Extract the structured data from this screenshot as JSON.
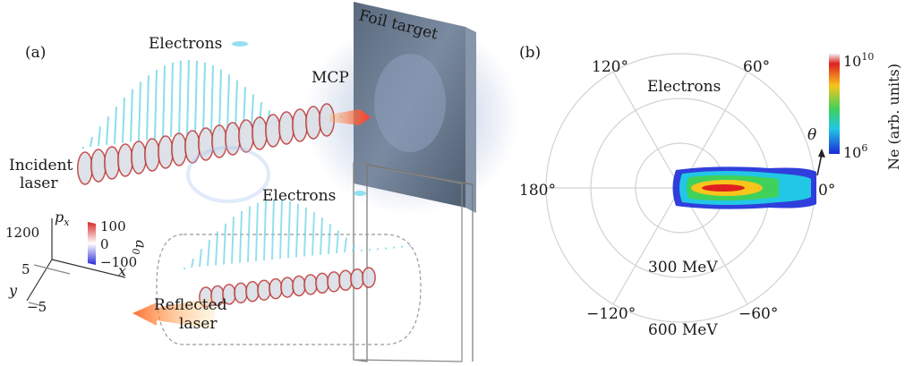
{
  "panel_a": {
    "label": "(a)",
    "foil_target": "Foil target",
    "mcp": "MCP",
    "electrons_top": "Electrons",
    "electrons_bottom": "Electrons",
    "incident_laser_1": "Incident",
    "incident_laser_2": "laser",
    "reflected_laser_1": "Reflected",
    "reflected_laser_2": "laser",
    "axes": {
      "px": "p",
      "px_sub": "x",
      "x": "x",
      "y": "y",
      "px_tick": "1200",
      "y_tick_pos": "5",
      "y_tick_neg": "−5"
    },
    "a0_colorbar": {
      "symbol": "a",
      "symbol_sub": "0",
      "max": "100",
      "mid": "0",
      "min": "−100",
      "colors": [
        "#d62a2a",
        "#ffffff",
        "#2a2ad6"
      ]
    }
  },
  "panel_b": {
    "label": "(b)",
    "electrons_label": "Electrons",
    "theta_label": "θ",
    "angle_labels": {
      "a120": "120°",
      "a60": "60°",
      "a180": "180°",
      "a0": "0°",
      "am120": "−120°",
      "am60": "−60°"
    },
    "radial_labels": {
      "r300": "300 MeV",
      "r600": "600 MeV"
    },
    "colorbar": {
      "top": "10",
      "top_exp": "10",
      "bottom": "10",
      "bottom_exp": "6",
      "title": "Ne (arb. units)",
      "colors": [
        "#f0f0f0",
        "#e02020",
        "#f7c51b",
        "#3fd15a",
        "#22c7e5",
        "#1a2ad8"
      ]
    }
  }
}
